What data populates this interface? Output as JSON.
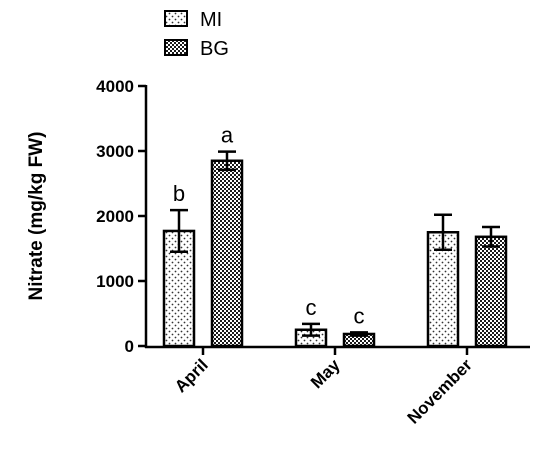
{
  "chart_data": {
    "type": "bar",
    "categories": [
      "April",
      "May",
      "November"
    ],
    "series": [
      {
        "name": "MI",
        "pattern": "dots",
        "values": [
          1770,
          250,
          1750
        ],
        "errors": [
          320,
          90,
          270
        ],
        "letters": [
          "b",
          "c",
          ""
        ]
      },
      {
        "name": "BG",
        "pattern": "crosshatch",
        "values": [
          2850,
          185,
          1680
        ],
        "errors": [
          140,
          25,
          150
        ],
        "letters": [
          "a",
          "c",
          ""
        ]
      }
    ],
    "ylabel": "Nitrate (mg/kg FW)",
    "xlabel": "",
    "ylim": [
      0,
      4000
    ],
    "yticks": [
      "0",
      "1000",
      "2000",
      "3000",
      "4000"
    ],
    "ytick_values": [
      0,
      1000,
      2000,
      3000,
      4000
    ],
    "legend_position": "top-left",
    "grid": false
  }
}
